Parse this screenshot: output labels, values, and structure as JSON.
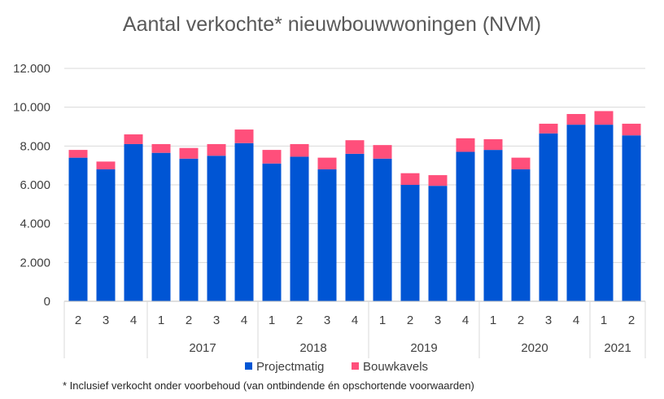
{
  "chart_data": {
    "type": "bar",
    "stacked": true,
    "title": "Aantal verkochte* nieuwbouwwoningen (NVM)",
    "footnote": "* Inclusief verkocht onder voorbehoud (van ontbindende én opschortende voorwaarden)",
    "categories": [
      "2",
      "3",
      "4",
      "1",
      "2",
      "3",
      "4",
      "1",
      "2",
      "3",
      "4",
      "1",
      "2",
      "3",
      "4",
      "1",
      "2",
      "3",
      "4",
      "1",
      "2"
    ],
    "groups": [
      {
        "label": "",
        "count": 3
      },
      {
        "label": "2017",
        "count": 4
      },
      {
        "label": "2018",
        "count": 4
      },
      {
        "label": "2019",
        "count": 4
      },
      {
        "label": "2020",
        "count": 4
      },
      {
        "label": "2021",
        "count": 2
      }
    ],
    "series": [
      {
        "name": "Projectmatig",
        "color": "#0055D4",
        "values": [
          7400,
          6800,
          8100,
          7650,
          7350,
          7500,
          8150,
          7100,
          7450,
          6800,
          7600,
          7350,
          6000,
          5950,
          7700,
          7800,
          6800,
          8650,
          9100,
          9100,
          8550
        ]
      },
      {
        "name": "Bouwkavels",
        "color": "#FF4F7B",
        "values": [
          400,
          400,
          500,
          450,
          550,
          600,
          700,
          700,
          650,
          600,
          700,
          700,
          600,
          550,
          700,
          550,
          600,
          500,
          550,
          700,
          600
        ]
      }
    ],
    "ylim": [
      0,
      12000
    ],
    "yticks": [
      "0",
      "2.000",
      "4.000",
      "6.000",
      "8.000",
      "10.000",
      "12.000"
    ],
    "xlabel": "",
    "ylabel": "",
    "grid": true,
    "legend": "bottom"
  }
}
